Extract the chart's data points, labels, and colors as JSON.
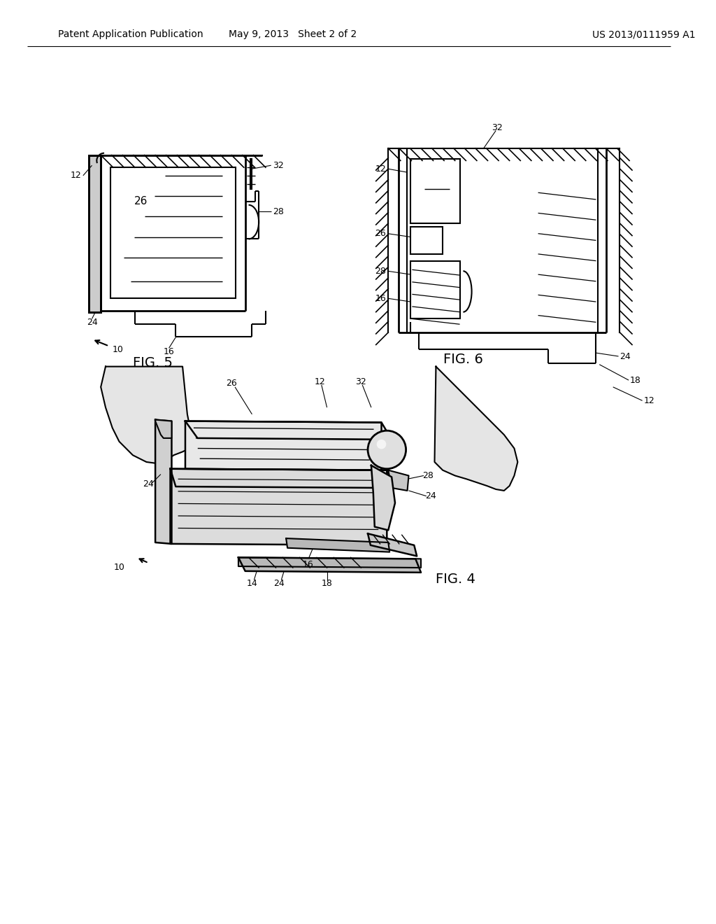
{
  "bg_color": "#ffffff",
  "text_color": "#000000",
  "line_color": "#000000",
  "header_left": "Patent Application Publication",
  "header_mid": "May 9, 2013   Sheet 2 of 2",
  "header_right": "US 2013/0111959 A1",
  "fig5_label": "FIG. 5",
  "fig6_label": "FIG. 6",
  "fig4_label": "FIG. 4"
}
